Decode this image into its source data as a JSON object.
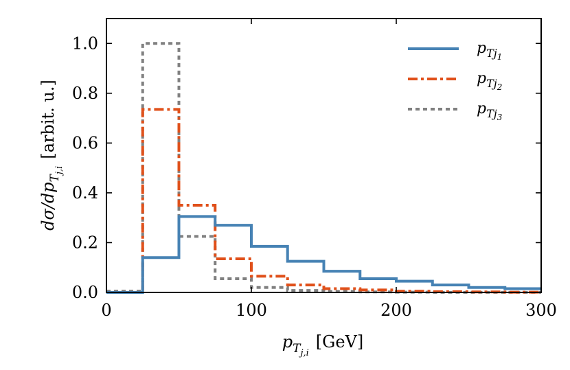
{
  "chart_data": {
    "type": "line",
    "style": "step-histogram",
    "xlabel": {
      "base": "p",
      "sub": "T",
      "subsub": "j,i",
      "unit": "[GeV]"
    },
    "ylabel": {
      "text": "dσ/dp",
      "sub": "T",
      "subsub": "j,i",
      "unit": "[arbit. u.]"
    },
    "xlim": [
      0,
      300
    ],
    "ylim": [
      0,
      1.1
    ],
    "xticks": [
      "0",
      "100",
      "200",
      "300"
    ],
    "yticks": [
      "0.0",
      "0.2",
      "0.4",
      "0.6",
      "0.8",
      "1.0"
    ],
    "bin_edges": [
      0,
      25,
      50,
      75,
      100,
      125,
      150,
      175,
      200,
      225,
      250,
      275,
      300
    ],
    "legend_position": "top-right",
    "series": [
      {
        "name": "p_Tj1",
        "legend": {
          "base": "p",
          "sub": "T",
          "j": "j",
          "idx": "1"
        },
        "color": "#4682b4",
        "dash": "solid",
        "values": [
          0.0,
          0.14,
          0.305,
          0.27,
          0.185,
          0.125,
          0.085,
          0.055,
          0.045,
          0.03,
          0.02,
          0.015
        ]
      },
      {
        "name": "p_Tj2",
        "legend": {
          "base": "p",
          "sub": "T",
          "j": "j",
          "idx": "2"
        },
        "color": "#e0501a",
        "dash": "dashdot",
        "values": [
          0.0,
          0.735,
          0.35,
          0.135,
          0.065,
          0.03,
          0.015,
          0.01,
          0.005,
          0.003,
          0.002,
          0.001
        ]
      },
      {
        "name": "p_Tj3",
        "legend": {
          "base": "p",
          "sub": "T",
          "j": "j",
          "idx": "3"
        },
        "color": "#808080",
        "dash": "dotted",
        "values": [
          0.005,
          1.0,
          0.225,
          0.055,
          0.02,
          0.008,
          0.004,
          0.002,
          0.001,
          0.0005,
          0.0003,
          0.0002
        ]
      }
    ]
  }
}
